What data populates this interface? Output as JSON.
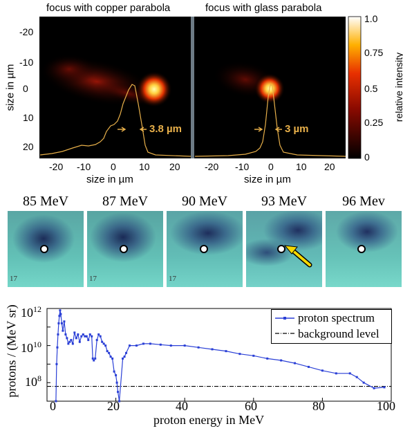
{
  "heatmaps": {
    "left_title": "focus with copper parabola",
    "right_title": "focus with glass parabola",
    "y_ticks": [
      "-20",
      "-10",
      "0",
      "10",
      "20"
    ],
    "x_ticks": [
      "-20",
      "-10",
      "0",
      "10",
      "20"
    ],
    "y_label": "size in µm",
    "x_label": "size in µm",
    "left_fwhm": "3.8 µm",
    "right_fwhm": "3 µm",
    "colorbar_ticks": [
      "1.0",
      "0.75",
      "0.5",
      "0.25",
      "0"
    ],
    "colorbar_label": "relative intensity",
    "colors": {
      "profile": "#e8b04a",
      "hot": "#ffff80"
    }
  },
  "samples": {
    "energies": [
      "85 MeV",
      "87 MeV",
      "90 MeV",
      "93 MeV",
      "96 Mev"
    ],
    "arrow_color": "#f5d800"
  },
  "chart_data": {
    "type": "line",
    "xlabel": "proton energy in MeV",
    "ylabel": "protons / (MeV sr)",
    "xlim": [
      0,
      100
    ],
    "ylim_log10": [
      7,
      12
    ],
    "yscale": "log",
    "x_ticks": [
      "0",
      "20",
      "40",
      "60",
      "80",
      "100"
    ],
    "y_ticks": [
      {
        "base": "10",
        "exp": "12",
        "value": 12
      },
      {
        "base": "10",
        "exp": "10",
        "value": 10
      },
      {
        "base": "10",
        "exp": "8",
        "value": 8
      }
    ],
    "legend_position": "top-right",
    "series": [
      {
        "name": "proton spectrum",
        "color": "#2a3fd6",
        "x": [
          2.6,
          2.8,
          3.0,
          3.2,
          3.4,
          3.6,
          3.8,
          4.0,
          4.3,
          4.6,
          5.0,
          5.4,
          5.8,
          6.2,
          6.6,
          7.0,
          7.5,
          8.0,
          8.5,
          9.0,
          9.5,
          10,
          10.5,
          11,
          11.5,
          12,
          12.5,
          13,
          13.3,
          13.6,
          14,
          14.5,
          15,
          15.5,
          16,
          16.5,
          17,
          17.5,
          18,
          18.5,
          19,
          19.5,
          20,
          20.3,
          20.6,
          21,
          22,
          22.5,
          23,
          24,
          26,
          28,
          30,
          33,
          36,
          40,
          44,
          48,
          52,
          56,
          60,
          64,
          68,
          72,
          76,
          80,
          84,
          88,
          90,
          92,
          95,
          98
        ],
        "y": [
          7,
          9.0,
          9.9,
          10.6,
          11.2,
          11.6,
          11.9,
          11.7,
          11.2,
          10.8,
          11.3,
          10.6,
          10.4,
          10.1,
          10.2,
          10.3,
          10.1,
          10.7,
          10.4,
          10.6,
          10.2,
          10.5,
          10.6,
          10.5,
          10.5,
          10.3,
          10.6,
          10.5,
          9.3,
          9.2,
          9.3,
          10.3,
          10.6,
          10.5,
          10.2,
          10.1,
          10.0,
          9.7,
          9.6,
          9.4,
          9.3,
          8.6,
          8.4,
          8.0,
          7.5,
          7.0,
          9.3,
          9.4,
          9.6,
          10.0,
          10.0,
          10.1,
          10.1,
          10.05,
          10.0,
          10.0,
          9.9,
          9.8,
          9.7,
          9.55,
          9.45,
          9.3,
          9.2,
          9.05,
          8.85,
          8.65,
          8.5,
          8.5,
          8.3,
          8.0,
          7.7,
          7.75
        ]
      },
      {
        "name": "background level",
        "color": "#000000",
        "x": [
          0,
          100
        ],
        "y": [
          7.8,
          7.8
        ]
      }
    ]
  }
}
